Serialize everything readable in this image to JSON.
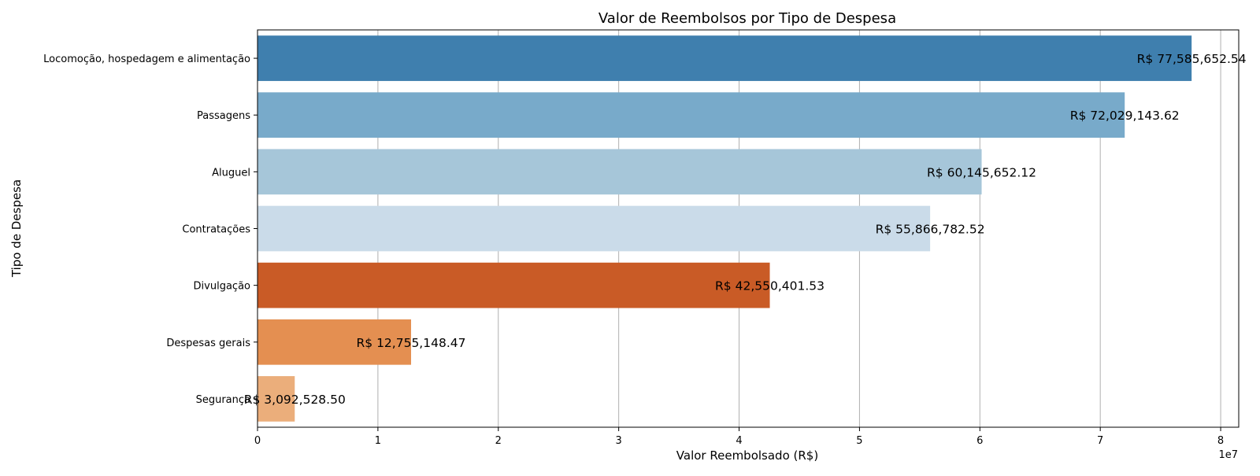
{
  "chart_data": {
    "type": "bar",
    "orientation": "horizontal",
    "title": "Valor de Reembolsos por Tipo de Despesa",
    "xlabel": "Valor Reembolsado (R$)",
    "ylabel": "Tipo de Despesa",
    "x_offset_text": "1e7",
    "xlim": [
      0,
      81500000
    ],
    "x_ticks": [
      0,
      10000000,
      20000000,
      30000000,
      40000000,
      50000000,
      60000000,
      70000000,
      80000000
    ],
    "x_tick_labels": [
      "0",
      "1",
      "2",
      "3",
      "4",
      "5",
      "6",
      "7",
      "8"
    ],
    "grid": "vertical",
    "categories": [
      "Locomoção, hospedagem e alimentação",
      "Passagens",
      "Aluguel",
      "Contratações",
      "Divulgação",
      "Despesas gerais",
      "Segurança"
    ],
    "values": [
      77585652.54,
      72029143.62,
      60145652.12,
      55866782.52,
      42550401.53,
      12755148.47,
      3092528.5
    ],
    "data_labels": [
      "R$ 77,585,652.54",
      "R$ 72,029,143.62",
      "R$ 60,145,652.12",
      "R$ 55,866,782.52",
      "R$ 42,550,401.53",
      "R$ 12,755,148.47",
      "R$ 3,092,528.50"
    ],
    "colors": [
      "#3f7fae",
      "#78aaca",
      "#a6c6d9",
      "#cadbe9",
      "#c95b26",
      "#e48f51",
      "#ebae7b"
    ]
  }
}
